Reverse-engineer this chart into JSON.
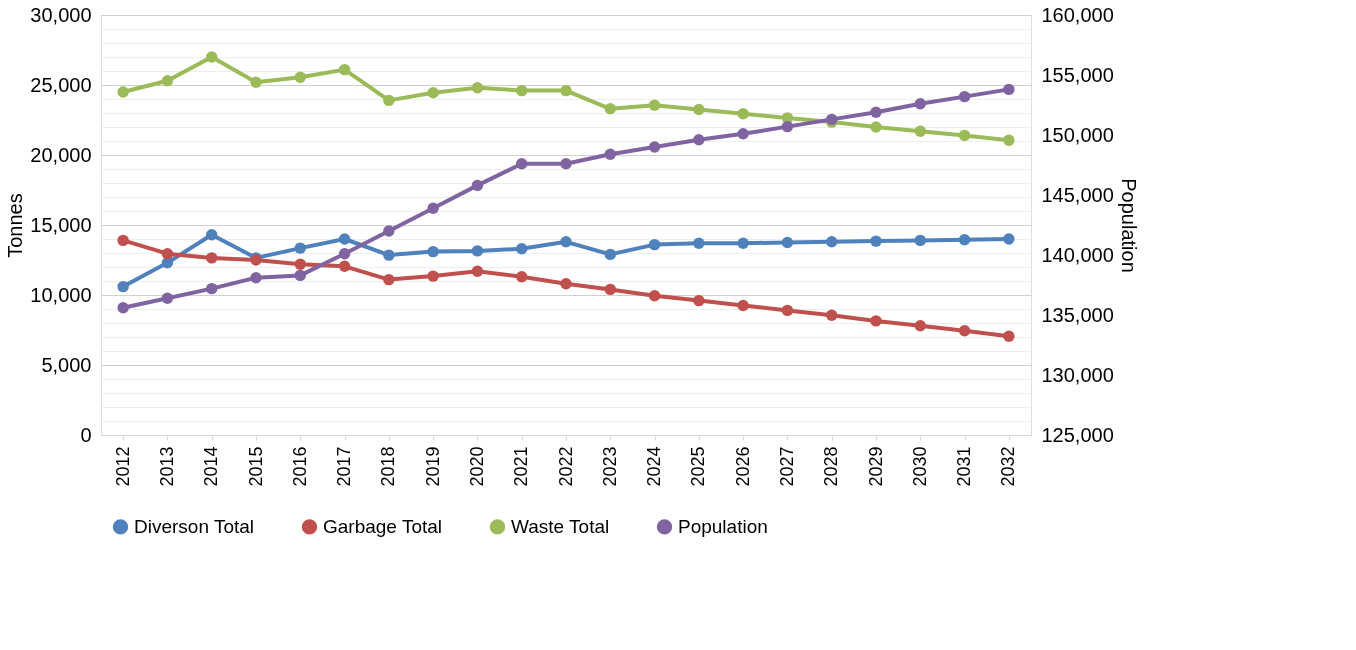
{
  "chart_data": {
    "type": "line",
    "categories": [
      "2012",
      "2013",
      "2014",
      "2015",
      "2016",
      "2017",
      "2018",
      "2019",
      "2020",
      "2021",
      "2022",
      "2023",
      "2024",
      "2025",
      "2026",
      "2027",
      "2028",
      "2029",
      "2030",
      "2031",
      "2032"
    ],
    "series": [
      {
        "name": "Diverson Total",
        "color": "#4f81bd",
        "values": [
          10600,
          12300,
          14300,
          12650,
          13350,
          14000,
          12850,
          13100,
          13150,
          13300,
          13800,
          12900,
          13600,
          13700,
          13700,
          13750,
          13800,
          13850,
          13900,
          13950,
          14000
        ]
      },
      {
        "name": "Garbage Total",
        "color": "#c0504d",
        "values": [
          13900,
          12950,
          12650,
          12500,
          12200,
          12050,
          11100,
          11350,
          11700,
          11300,
          10800,
          10400,
          9950,
          9600,
          9250,
          8900,
          8550,
          8150,
          7800,
          7450,
          7050
        ]
      },
      {
        "name": "Waste Total",
        "color": "#9bbb59",
        "values": [
          24500,
          25300,
          27000,
          25200,
          25550,
          26100,
          23900,
          24450,
          24800,
          24600,
          24600,
          23300,
          23550,
          23250,
          22950,
          22650,
          22350,
          22000,
          21700,
          21400,
          21050
        ]
      },
      {
        "name": "Population",
        "color": "#8064a2",
        "axis": "y2",
        "values": [
          135600,
          136400,
          137200,
          138100,
          138300,
          140100,
          142000,
          143900,
          145800,
          147600,
          147600,
          148400,
          149000,
          149600,
          150100,
          150700,
          151300,
          151900,
          152600,
          153200,
          153800
        ]
      }
    ],
    "ylabel": "Tonnes",
    "y2label": "Population",
    "ylim": [
      0,
      30000
    ],
    "yticks": [
      0,
      {
        "value": 1000,
        "label": null
      },
      {
        "value": 2000,
        "label": null
      },
      {
        "value": 3000,
        "label": null
      },
      {
        "value": 4000,
        "label": null
      },
      {
        "value": 5000,
        "label": "5,000"
      },
      {
        "value": 6000,
        "label": null
      },
      {
        "value": 7000,
        "label": null
      },
      {
        "value": 8000,
        "label": null
      },
      {
        "value": 9000,
        "label": null
      },
      {
        "value": 10000,
        "label": "10,000"
      },
      {
        "value": 11000,
        "label": null
      },
      {
        "value": 12000,
        "label": null
      },
      {
        "value": 13000,
        "label": null
      },
      {
        "value": 14000,
        "label": null
      },
      {
        "value": 15000,
        "label": "15,000"
      },
      {
        "value": 16000,
        "label": null
      },
      {
        "value": 17000,
        "label": null
      },
      {
        "value": 18000,
        "label": null
      },
      {
        "value": 19000,
        "label": null
      },
      {
        "value": 20000,
        "label": "20,000"
      },
      {
        "value": 21000,
        "label": null
      },
      {
        "value": 22000,
        "label": null
      },
      {
        "value": 23000,
        "label": null
      },
      {
        "value": 24000,
        "label": null
      },
      {
        "value": 25000,
        "label": "25,000"
      },
      {
        "value": 26000,
        "label": null
      },
      {
        "value": 27000,
        "label": null
      },
      {
        "value": 28000,
        "label": null
      },
      {
        "value": 29000,
        "label": null
      },
      {
        "value": 30000,
        "label": "30,000"
      }
    ],
    "y2lim": [
      125000,
      160000
    ],
    "y2ticks": [
      {
        "value": 125000,
        "label": "125,000"
      },
      {
        "value": 130000,
        "label": "130,000"
      },
      {
        "value": 135000,
        "label": "135,000"
      },
      {
        "value": 140000,
        "label": "140,000"
      },
      {
        "value": 145000,
        "label": "145,000"
      },
      {
        "value": 150000,
        "label": "150,000"
      },
      {
        "value": 155000,
        "label": "155,000"
      },
      {
        "value": 160000,
        "label": "160,000"
      }
    ],
    "grid": "y",
    "legend": "bottom",
    "marker": "circle",
    "line_style": "solid"
  }
}
